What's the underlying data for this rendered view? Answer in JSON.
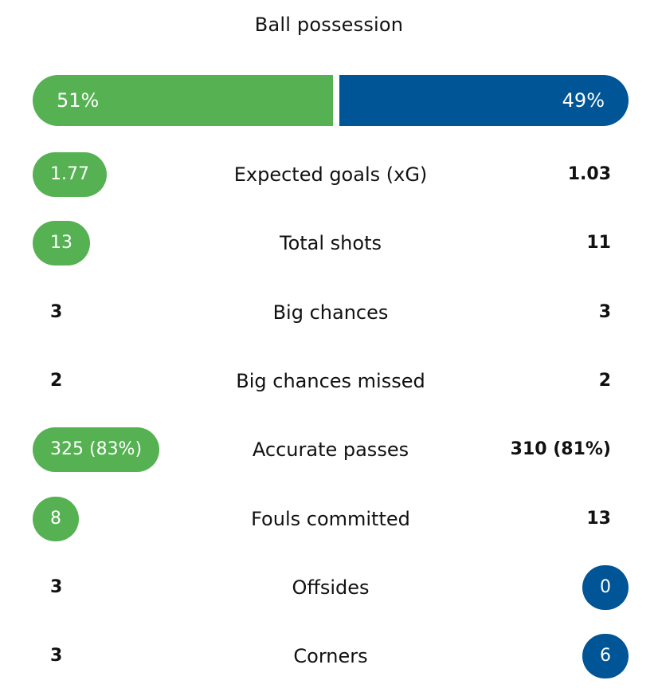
{
  "title": "Ball possession",
  "colors": {
    "home": "#55b152",
    "away": "#005596"
  },
  "possession": {
    "home": {
      "label": "51%",
      "value": 51
    },
    "away": {
      "label": "49%",
      "value": 49
    }
  },
  "stats": [
    {
      "label": "Expected goals (xG)",
      "home": "1.77",
      "away": "1.03",
      "highlight": "home"
    },
    {
      "label": "Total shots",
      "home": "13",
      "away": "11",
      "highlight": "home"
    },
    {
      "label": "Big chances",
      "home": "3",
      "away": "3",
      "highlight": "none"
    },
    {
      "label": "Big chances missed",
      "home": "2",
      "away": "2",
      "highlight": "none"
    },
    {
      "label": "Accurate passes",
      "home": "325 (83%)",
      "away": "310 (81%)",
      "highlight": "home"
    },
    {
      "label": "Fouls committed",
      "home": "8",
      "away": "13",
      "highlight": "home"
    },
    {
      "label": "Offsides",
      "home": "3",
      "away": "0",
      "highlight": "away"
    },
    {
      "label": "Corners",
      "home": "3",
      "away": "6",
      "highlight": "away"
    }
  ]
}
